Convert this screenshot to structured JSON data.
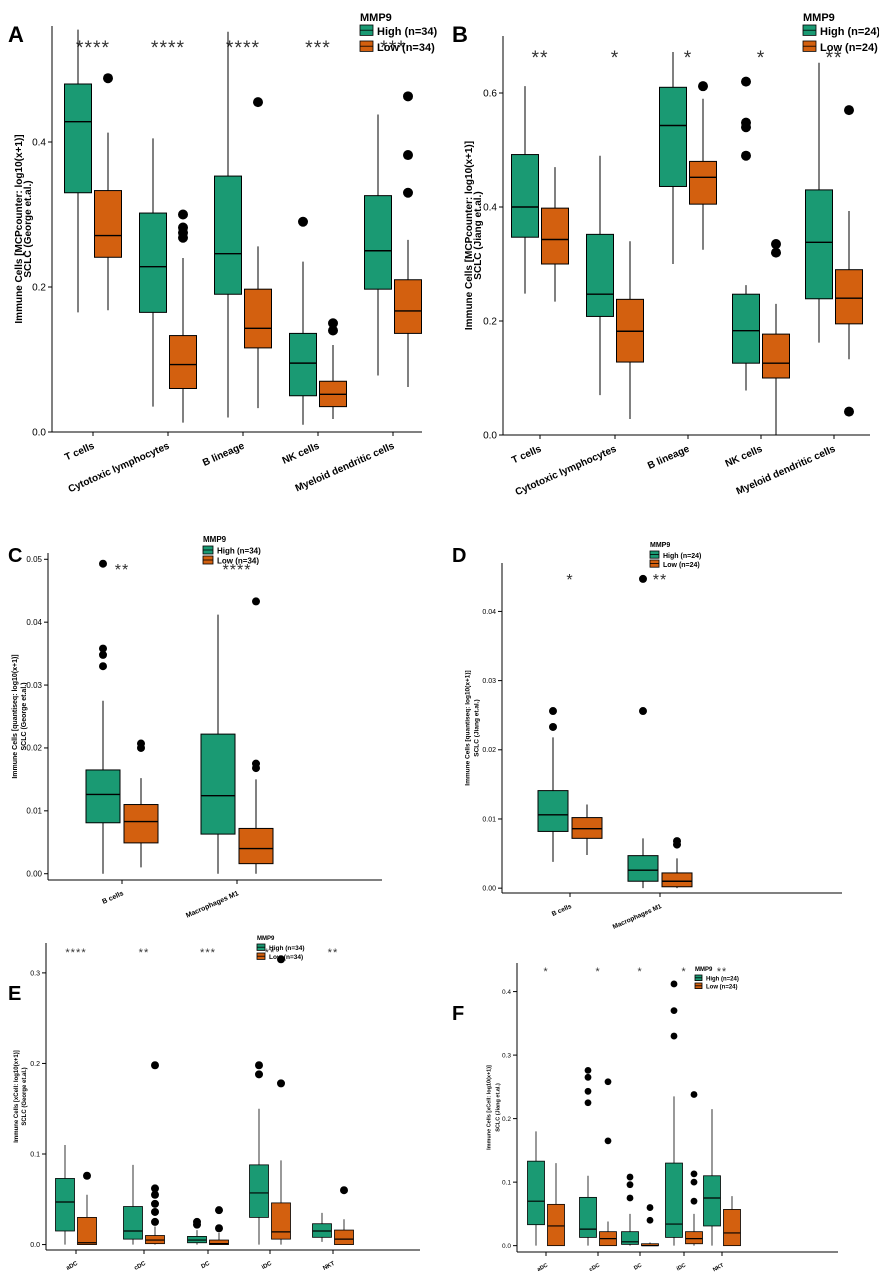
{
  "colors": {
    "high": "#1a9a73",
    "low": "#d3600f",
    "axis": "#000000",
    "star": "#333333"
  },
  "chart_data": [
    {
      "type": "boxplot",
      "panel_label": "A",
      "ylabel": "Immune Cells [MCPcounter: log10(x+1)]",
      "ylabel2": "SCLC (George et.al.)",
      "ylim": [
        0,
        0.56
      ],
      "yticks": [
        0.0,
        0.2,
        0.4
      ],
      "tick_labels": [
        "0.0",
        "0.2",
        "0.4"
      ],
      "legend_title": "MMP9",
      "legend_entries": [
        "High (n=34)",
        "Low (n=34)"
      ],
      "categories": [
        "T cells",
        "Cytotoxic lymphocytes",
        "B lineage",
        "NK cells",
        "Myeloid dendritic cells"
      ],
      "significance": [
        "****",
        "****",
        "****",
        "***",
        "***"
      ],
      "series": [
        {
          "name": "High",
          "boxes": [
            {
              "min": 0.165,
              "q1": 0.33,
              "median": 0.428,
              "q3": 0.48,
              "max": 0.555,
              "outliers": []
            },
            {
              "min": 0.035,
              "q1": 0.165,
              "median": 0.228,
              "q3": 0.302,
              "max": 0.405,
              "outliers": []
            },
            {
              "min": 0.02,
              "q1": 0.19,
              "median": 0.246,
              "q3": 0.353,
              "max": 0.552,
              "outliers": []
            },
            {
              "min": 0.01,
              "q1": 0.05,
              "median": 0.095,
              "q3": 0.136,
              "max": 0.235,
              "outliers": [
                0.29
              ]
            },
            {
              "min": 0.078,
              "q1": 0.197,
              "median": 0.25,
              "q3": 0.326,
              "max": 0.438,
              "outliers": []
            }
          ]
        },
        {
          "name": "Low",
          "boxes": [
            {
              "min": 0.168,
              "q1": 0.241,
              "median": 0.271,
              "q3": 0.333,
              "max": 0.413,
              "outliers": [
                0.488
              ]
            },
            {
              "min": 0.013,
              "q1": 0.06,
              "median": 0.093,
              "q3": 0.133,
              "max": 0.24,
              "outliers": [
                0.268,
                0.275,
                0.282,
                0.3
              ]
            },
            {
              "min": 0.033,
              "q1": 0.116,
              "median": 0.143,
              "q3": 0.197,
              "max": 0.256,
              "outliers": [
                0.455
              ]
            },
            {
              "min": 0.018,
              "q1": 0.035,
              "median": 0.052,
              "q3": 0.07,
              "max": 0.12,
              "outliers": [
                0.14,
                0.15
              ]
            },
            {
              "min": 0.062,
              "q1": 0.136,
              "median": 0.167,
              "q3": 0.21,
              "max": 0.265,
              "outliers": [
                0.33,
                0.382,
                0.463
              ]
            }
          ]
        }
      ]
    },
    {
      "type": "boxplot",
      "panel_label": "B",
      "ylabel": "Immune Cells [MCPcounter: log10(x+1)]",
      "ylabel2": "SCLC (Jiang et.al.)",
      "ylim": [
        0,
        0.7
      ],
      "yticks": [
        0.0,
        0.2,
        0.4,
        0.6
      ],
      "tick_labels": [
        "0.0",
        "0.2",
        "0.4",
        "0.6"
      ],
      "legend_title": "MMP9",
      "legend_entries": [
        "High (n=24)",
        "Low (n=24)"
      ],
      "categories": [
        "T cells",
        "Cytotoxic lymphocytes",
        "B lineage",
        "NK cells",
        "Myeloid dendritic cells"
      ],
      "significance": [
        "**",
        "*",
        "*",
        "*",
        "**"
      ],
      "series": [
        {
          "name": "High",
          "boxes": [
            {
              "min": 0.248,
              "q1": 0.347,
              "median": 0.4,
              "q3": 0.492,
              "max": 0.612,
              "outliers": []
            },
            {
              "min": 0.07,
              "q1": 0.208,
              "median": 0.247,
              "q3": 0.352,
              "max": 0.49,
              "outliers": []
            },
            {
              "min": 0.3,
              "q1": 0.436,
              "median": 0.543,
              "q3": 0.61,
              "max": 0.672,
              "outliers": []
            },
            {
              "min": 0.078,
              "q1": 0.126,
              "median": 0.183,
              "q3": 0.247,
              "max": 0.263,
              "outliers": [
                0.49,
                0.54,
                0.548,
                0.62
              ]
            },
            {
              "min": 0.162,
              "q1": 0.239,
              "median": 0.338,
              "q3": 0.43,
              "max": 0.653,
              "outliers": []
            }
          ]
        },
        {
          "name": "Low",
          "boxes": [
            {
              "min": 0.234,
              "q1": 0.3,
              "median": 0.343,
              "q3": 0.398,
              "max": 0.47,
              "outliers": []
            },
            {
              "min": 0.028,
              "q1": 0.128,
              "median": 0.182,
              "q3": 0.238,
              "max": 0.34,
              "outliers": []
            },
            {
              "min": 0.325,
              "q1": 0.405,
              "median": 0.452,
              "q3": 0.48,
              "max": 0.59,
              "outliers": [
                0.612
              ]
            },
            {
              "min": 0.0,
              "q1": 0.1,
              "median": 0.126,
              "q3": 0.177,
              "max": 0.23,
              "outliers": [
                0.32,
                0.335
              ]
            },
            {
              "min": 0.133,
              "q1": 0.195,
              "median": 0.24,
              "q3": 0.29,
              "max": 0.393,
              "outliers": [
                0.041,
                0.57
              ]
            }
          ]
        }
      ]
    },
    {
      "type": "boxplot",
      "panel_label": "C",
      "ylabel": "Immune Cells [quantiseq: log10(x+1)]",
      "ylabel2": "SCLC (George et.al.)",
      "ylim": [
        -0.001,
        0.051
      ],
      "yticks": [
        0.0,
        0.01,
        0.02,
        0.03,
        0.04,
        0.05
      ],
      "tick_labels": [
        "0.00",
        "0.01",
        "0.02",
        "0.03",
        "0.04",
        "0.05"
      ],
      "legend_title": "MMP9",
      "legend_entries": [
        "High (n=34)",
        "Low (n=34)"
      ],
      "categories": [
        "B cells",
        "Macrophages M1"
      ],
      "significance": [
        "**",
        "****"
      ],
      "series": [
        {
          "name": "High",
          "boxes": [
            {
              "min": 0.0,
              "q1": 0.0081,
              "median": 0.0126,
              "q3": 0.0165,
              "max": 0.0275,
              "outliers": [
                0.033,
                0.0348,
                0.0358,
                0.0493
              ]
            },
            {
              "min": 0.0,
              "q1": 0.0063,
              "median": 0.0124,
              "q3": 0.0222,
              "max": 0.0412,
              "outliers": []
            }
          ]
        },
        {
          "name": "Low",
          "boxes": [
            {
              "min": 0.001,
              "q1": 0.0049,
              "median": 0.0083,
              "q3": 0.011,
              "max": 0.0152,
              "outliers": [
                0.02,
                0.0207
              ]
            },
            {
              "min": 0.0,
              "q1": 0.0016,
              "median": 0.004,
              "q3": 0.0072,
              "max": 0.015,
              "outliers": [
                0.0168,
                0.0175,
                0.0433
              ]
            }
          ]
        }
      ]
    },
    {
      "type": "boxplot",
      "panel_label": "D",
      "ylabel": "Immune Cells [quantiseq: log10(x+1)]",
      "ylabel2": "SCLC (Jiang et.al.)",
      "ylim": [
        -0.0007,
        0.047
      ],
      "yticks": [
        0.0,
        0.01,
        0.02,
        0.03,
        0.04
      ],
      "tick_labels": [
        "0.00",
        "0.01",
        "0.02",
        "0.03",
        "0.04"
      ],
      "legend_title": "MMP9",
      "legend_entries": [
        "High (n=24)",
        "Low (n=24)"
      ],
      "categories": [
        "B cells",
        "Macrophages M1"
      ],
      "significance": [
        "*",
        "**"
      ],
      "series": [
        {
          "name": "High",
          "boxes": [
            {
              "min": 0.0038,
              "q1": 0.0082,
              "median": 0.0106,
              "q3": 0.0141,
              "max": 0.0218,
              "outliers": [
                0.0233,
                0.0256
              ]
            },
            {
              "min": 0.0,
              "q1": 0.001,
              "median": 0.0026,
              "q3": 0.0047,
              "max": 0.0072,
              "outliers": [
                0.0256,
                0.0447
              ]
            }
          ]
        },
        {
          "name": "Low",
          "boxes": [
            {
              "min": 0.0048,
              "q1": 0.0072,
              "median": 0.0086,
              "q3": 0.0102,
              "max": 0.0121,
              "outliers": []
            },
            {
              "min": 0.0,
              "q1": 0.0002,
              "median": 0.001,
              "q3": 0.0022,
              "max": 0.0043,
              "outliers": [
                0.0063,
                0.0068
              ]
            }
          ]
        }
      ]
    },
    {
      "type": "boxplot",
      "panel_label": "E",
      "ylabel": "Immune Cells [xCell: log10(x+1)]",
      "ylabel2": "SCLC (George et.al.)",
      "ylim": [
        -0.006,
        0.333
      ],
      "yticks": [
        0.0,
        0.1,
        0.2,
        0.3
      ],
      "tick_labels": [
        "0.0",
        "0.1",
        "0.2",
        "0.3"
      ],
      "legend_title": "MMP9",
      "legend_entries": [
        "High (n=34)",
        "Low (n=34)"
      ],
      "categories": [
        "aDC",
        "cDC",
        "DC",
        "iDC",
        "NKT"
      ],
      "significance": [
        "****",
        "**",
        "***",
        "**",
        "**"
      ],
      "series": [
        {
          "name": "High",
          "boxes": [
            {
              "min": 0.0,
              "q1": 0.015,
              "median": 0.047,
              "q3": 0.073,
              "max": 0.11,
              "outliers": []
            },
            {
              "min": 0.0,
              "q1": 0.006,
              "median": 0.015,
              "q3": 0.042,
              "max": 0.088,
              "outliers": []
            },
            {
              "min": 0.0,
              "q1": 0.002,
              "median": 0.005,
              "q3": 0.009,
              "max": 0.016,
              "outliers": [
                0.022,
                0.025
              ]
            },
            {
              "min": 0.0,
              "q1": 0.03,
              "median": 0.057,
              "q3": 0.088,
              "max": 0.15,
              "outliers": [
                0.188,
                0.198
              ]
            },
            {
              "min": 0.003,
              "q1": 0.008,
              "median": 0.015,
              "q3": 0.023,
              "max": 0.035,
              "outliers": []
            }
          ]
        },
        {
          "name": "Low",
          "boxes": [
            {
              "min": 0.0,
              "q1": 0.0,
              "median": 0.002,
              "q3": 0.03,
              "max": 0.055,
              "outliers": [
                0.076
              ]
            },
            {
              "min": 0.0,
              "q1": 0.001,
              "median": 0.005,
              "q3": 0.01,
              "max": 0.02,
              "outliers": [
                0.025,
                0.036,
                0.045,
                0.055,
                0.062,
                0.198
              ]
            },
            {
              "min": 0.0,
              "q1": 0.0,
              "median": 0.001,
              "q3": 0.005,
              "max": 0.013,
              "outliers": [
                0.018,
                0.038
              ]
            },
            {
              "min": 0.0,
              "q1": 0.006,
              "median": 0.014,
              "q3": 0.046,
              "max": 0.093,
              "outliers": [
                0.178,
                0.315
              ]
            },
            {
              "min": 0.0,
              "q1": 0.0,
              "median": 0.006,
              "q3": 0.016,
              "max": 0.028,
              "outliers": [
                0.06
              ]
            }
          ]
        }
      ]
    },
    {
      "type": "boxplot",
      "panel_label": "F",
      "ylabel": "Immune Cells [xCell: log10(x+1)]",
      "ylabel2": "SCLC (Jiang et.al.)",
      "ylim": [
        -0.01,
        0.445
      ],
      "yticks": [
        0.0,
        0.1,
        0.2,
        0.3,
        0.4
      ],
      "tick_labels": [
        "0.0",
        "0.1",
        "0.2",
        "0.3",
        "0.4"
      ],
      "legend_title": "MMP9",
      "legend_entries": [
        "High (n=24)",
        "Low (n=24)"
      ],
      "categories": [
        "aDC",
        "cDC",
        "DC",
        "iDC",
        "NKT"
      ],
      "significance": [
        "*",
        "*",
        "*",
        "*",
        "**"
      ],
      "series": [
        {
          "name": "High",
          "boxes": [
            {
              "min": 0.0,
              "q1": 0.033,
              "median": 0.07,
              "q3": 0.133,
              "max": 0.18,
              "outliers": []
            },
            {
              "min": 0.0,
              "q1": 0.013,
              "median": 0.026,
              "q3": 0.076,
              "max": 0.11,
              "outliers": [
                0.225,
                0.243,
                0.265,
                0.276
              ]
            },
            {
              "min": 0.0,
              "q1": 0.002,
              "median": 0.006,
              "q3": 0.022,
              "max": 0.05,
              "outliers": [
                0.075,
                0.096,
                0.108
              ]
            },
            {
              "min": 0.0,
              "q1": 0.013,
              "median": 0.034,
              "q3": 0.13,
              "max": 0.235,
              "outliers": [
                0.33,
                0.37,
                0.412
              ]
            },
            {
              "min": 0.0,
              "q1": 0.031,
              "median": 0.075,
              "q3": 0.11,
              "max": 0.215,
              "outliers": []
            }
          ]
        },
        {
          "name": "Low",
          "boxes": [
            {
              "min": 0.0,
              "q1": 0.0,
              "median": 0.031,
              "q3": 0.065,
              "max": 0.13,
              "outliers": []
            },
            {
              "min": 0.0,
              "q1": 0.0,
              "median": 0.011,
              "q3": 0.022,
              "max": 0.038,
              "outliers": [
                0.165,
                0.258
              ]
            },
            {
              "min": 0.0,
              "q1": 0.0,
              "median": 0.0,
              "q3": 0.003,
              "max": 0.005,
              "outliers": [
                0.04,
                0.06
              ]
            },
            {
              "min": 0.0,
              "q1": 0.003,
              "median": 0.011,
              "q3": 0.022,
              "max": 0.05,
              "outliers": [
                0.07,
                0.1,
                0.113,
                0.238
              ]
            },
            {
              "min": 0.0,
              "q1": 0.0,
              "median": 0.02,
              "q3": 0.057,
              "max": 0.078,
              "outliers": []
            }
          ]
        }
      ]
    }
  ]
}
